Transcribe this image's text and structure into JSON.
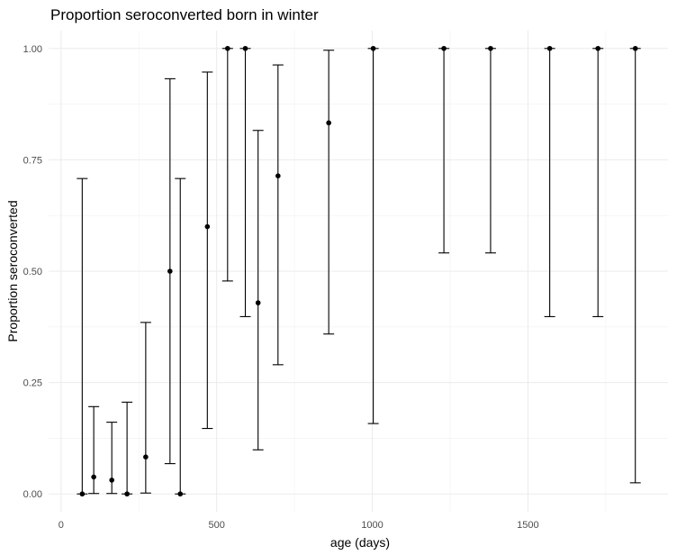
{
  "chart_data": {
    "type": "scatter",
    "title": "Proportion seroconverted born in winter",
    "xlabel": "age (days)",
    "ylabel": "Proportion seroconverted",
    "xlim": [
      -40,
      1950
    ],
    "ylim": [
      -0.04,
      1.04
    ],
    "x_ticks": [
      0,
      500,
      1000,
      1500
    ],
    "x_tick_labels": [
      "0",
      "500",
      "1000",
      "1500"
    ],
    "y_ticks": [
      0,
      0.25,
      0.5,
      0.75,
      1.0
    ],
    "y_tick_labels": [
      "0.00",
      "0.25",
      "0.50",
      "0.75",
      "1.00"
    ],
    "grid": true,
    "error_bars": true,
    "points": [
      {
        "x": 68,
        "y": 0.0,
        "lower": 0.0,
        "upper": 0.708
      },
      {
        "x": 105,
        "y": 0.038,
        "lower": 0.001,
        "upper": 0.196
      },
      {
        "x": 163,
        "y": 0.031,
        "lower": 0.001,
        "upper": 0.161
      },
      {
        "x": 212,
        "y": 0.0,
        "lower": 0.0,
        "upper": 0.206
      },
      {
        "x": 272,
        "y": 0.083,
        "lower": 0.002,
        "upper": 0.385
      },
      {
        "x": 350,
        "y": 0.5,
        "lower": 0.068,
        "upper": 0.932
      },
      {
        "x": 383,
        "y": 0.0,
        "lower": 0.0,
        "upper": 0.708
      },
      {
        "x": 470,
        "y": 0.6,
        "lower": 0.147,
        "upper": 0.947
      },
      {
        "x": 535,
        "y": 1.0,
        "lower": 0.478,
        "upper": 1.0
      },
      {
        "x": 592,
        "y": 1.0,
        "lower": 0.398,
        "upper": 1.0
      },
      {
        "x": 633,
        "y": 0.429,
        "lower": 0.099,
        "upper": 0.816
      },
      {
        "x": 697,
        "y": 0.714,
        "lower": 0.29,
        "upper": 0.963
      },
      {
        "x": 860,
        "y": 0.833,
        "lower": 0.359,
        "upper": 0.996
      },
      {
        "x": 1003,
        "y": 1.0,
        "lower": 0.158,
        "upper": 1.0
      },
      {
        "x": 1230,
        "y": 1.0,
        "lower": 0.541,
        "upper": 1.0
      },
      {
        "x": 1380,
        "y": 1.0,
        "lower": 0.541,
        "upper": 1.0
      },
      {
        "x": 1570,
        "y": 1.0,
        "lower": 0.398,
        "upper": 1.0
      },
      {
        "x": 1725,
        "y": 1.0,
        "lower": 0.398,
        "upper": 1.0
      },
      {
        "x": 1845,
        "y": 1.0,
        "lower": 0.025,
        "upper": 1.0
      }
    ]
  }
}
